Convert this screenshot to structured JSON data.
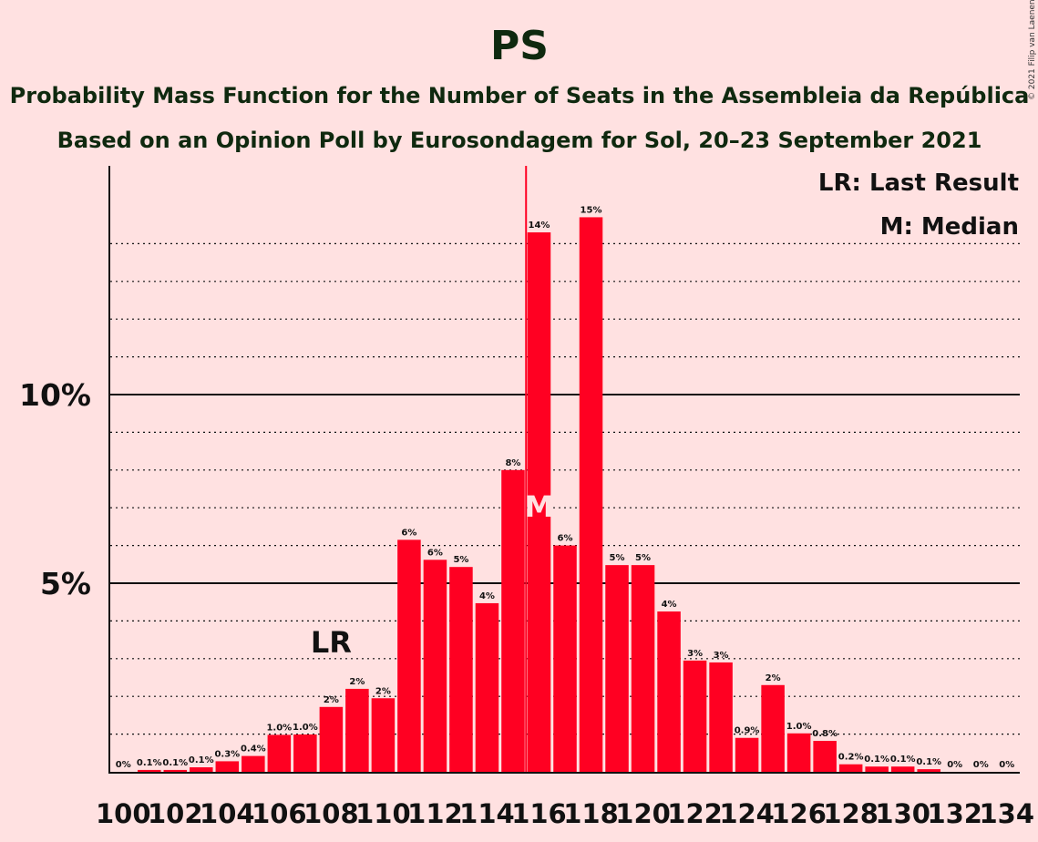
{
  "chart_data": {
    "type": "bar",
    "title": "PS",
    "subtitle": "Probability Mass Function for the Number of Seats in the Assembleia da República",
    "subtitle2": "Based on an Opinion Poll by Eurosondagem for Sol, 20–23 September 2021",
    "copyright": "© 2021 Filip van Laenen",
    "legend": {
      "lr": "LR: Last Result",
      "m": "M: Median"
    },
    "y_ticks": [
      {
        "value": 5,
        "label": "5%"
      },
      {
        "value": 10,
        "label": "10%"
      }
    ],
    "ylim": [
      0,
      16
    ],
    "x_tick_step": 2,
    "bar_color": "#FF0022",
    "axis_color": "#111111",
    "categories": [
      100,
      101,
      102,
      103,
      104,
      105,
      106,
      107,
      108,
      109,
      110,
      111,
      112,
      113,
      114,
      115,
      116,
      117,
      118,
      119,
      120,
      121,
      122,
      123,
      124,
      125,
      126,
      127,
      128,
      129,
      130,
      131,
      132,
      133,
      134
    ],
    "values": [
      0,
      0.05,
      0.05,
      0.12,
      0.28,
      0.42,
      0.98,
      0.99,
      1.72,
      2.2,
      1.95,
      6.15,
      5.62,
      5.43,
      4.47,
      8.0,
      14.3,
      6.0,
      14.7,
      5.48,
      5.48,
      4.25,
      2.95,
      2.9,
      0.9,
      2.3,
      1.02,
      0.82,
      0.2,
      0.14,
      0.14,
      0.07,
      0,
      0,
      0
    ],
    "labels": [
      "0%",
      "0.1%",
      "0.1%",
      "0.1%",
      "0.3%",
      "0.4%",
      "1.0%",
      "1.0%",
      "2%",
      "2%",
      "2%",
      "6%",
      "6%",
      "5%",
      "4%",
      "8%",
      "14%",
      "6%",
      "15%",
      "5%",
      "5%",
      "4%",
      "3%",
      "3%",
      "0.9%",
      "2%",
      "1.0%",
      "0.8%",
      "0.2%",
      "0.1%",
      "0.1%",
      "0.1%",
      "0%",
      "0%",
      "0%"
    ],
    "last_result": {
      "seat": 108,
      "label": "LR"
    },
    "median": {
      "seat": 116,
      "label": "M"
    }
  }
}
